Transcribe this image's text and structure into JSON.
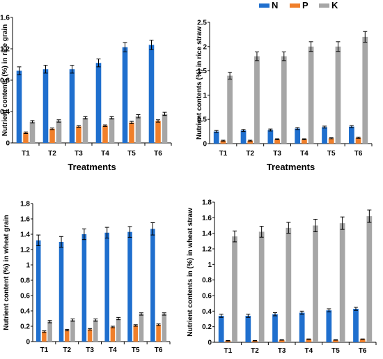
{
  "legend": [
    {
      "name": "N",
      "color": "#1f6fce"
    },
    {
      "name": "P",
      "color": "#f07f2a"
    },
    {
      "name": "K",
      "color": "#a6a6a6"
    }
  ],
  "chart_data": [
    {
      "type": "bar",
      "categories": [
        "T1",
        "T2",
        "T3",
        "T4",
        "T5",
        "T6"
      ],
      "ylabel": "Nutrient contents (%) in rice grain",
      "xlabel": "Treatments",
      "ylim": [
        0,
        1.6
      ],
      "yticks": [
        "0",
        "0.4",
        "0.8",
        "1.2",
        "1.6"
      ],
      "error_bars": true,
      "series": [
        {
          "name": "N",
          "values": [
            0.92,
            0.94,
            0.94,
            1.02,
            1.22,
            1.25
          ],
          "errors": [
            0.05,
            0.05,
            0.05,
            0.05,
            0.06,
            0.06
          ]
        },
        {
          "name": "P",
          "values": [
            0.13,
            0.18,
            0.21,
            0.22,
            0.26,
            0.28
          ],
          "errors": [
            0.01,
            0.01,
            0.01,
            0.01,
            0.015,
            0.015
          ]
        },
        {
          "name": "K",
          "values": [
            0.27,
            0.28,
            0.32,
            0.32,
            0.34,
            0.37
          ],
          "errors": [
            0.015,
            0.015,
            0.015,
            0.015,
            0.02,
            0.02
          ]
        }
      ]
    },
    {
      "type": "bar",
      "categories": [
        "T1",
        "T2",
        "T3",
        "T4",
        "T5",
        "T6"
      ],
      "ylabel": "Nutrient contents (%) in rice straw",
      "xlabel": "Treatments",
      "ylim": [
        0,
        2.5
      ],
      "yticks": [
        "0",
        "0.5",
        "1",
        "1.5",
        "2",
        "2.5"
      ],
      "error_bars": true,
      "series": [
        {
          "name": "N",
          "values": [
            0.25,
            0.27,
            0.28,
            0.31,
            0.34,
            0.35
          ],
          "errors": [
            0.02,
            0.02,
            0.02,
            0.02,
            0.02,
            0.02
          ]
        },
        {
          "name": "P",
          "values": [
            0.06,
            0.06,
            0.09,
            0.09,
            0.11,
            0.12
          ],
          "errors": [
            0.01,
            0.01,
            0.01,
            0.01,
            0.01,
            0.01
          ]
        },
        {
          "name": "K",
          "values": [
            1.4,
            1.8,
            1.8,
            2.0,
            2.0,
            2.2
          ],
          "errors": [
            0.07,
            0.09,
            0.09,
            0.1,
            0.1,
            0.11
          ]
        }
      ]
    },
    {
      "type": "bar",
      "categories": [
        "T1",
        "T2",
        "T3",
        "T4",
        "T5",
        "T6"
      ],
      "ylabel": "Nutrient content (%) in wheat grain",
      "xlabel": "",
      "ylim": [
        0,
        1.8
      ],
      "yticks": [
        "0",
        "0.2",
        "0.4",
        "0.6",
        "0.8",
        "1",
        "1.2",
        "1.4",
        "1.6",
        "1.8"
      ],
      "error_bars": true,
      "series": [
        {
          "name": "N",
          "values": [
            1.32,
            1.3,
            1.4,
            1.42,
            1.43,
            1.47
          ],
          "errors": [
            0.07,
            0.07,
            0.07,
            0.07,
            0.07,
            0.08
          ]
        },
        {
          "name": "P",
          "values": [
            0.13,
            0.15,
            0.16,
            0.19,
            0.21,
            0.22
          ],
          "errors": [
            0.01,
            0.01,
            0.01,
            0.01,
            0.01,
            0.01
          ]
        },
        {
          "name": "K",
          "values": [
            0.26,
            0.28,
            0.28,
            0.3,
            0.36,
            0.36
          ],
          "errors": [
            0.015,
            0.015,
            0.015,
            0.015,
            0.015,
            0.015
          ]
        }
      ]
    },
    {
      "type": "bar",
      "categories": [
        "T1",
        "T2",
        "T3",
        "T4",
        "T5",
        "T6"
      ],
      "ylabel": "Nutrient contents in (%) in wheat straw",
      "xlabel": "",
      "ylim": [
        0,
        1.8
      ],
      "yticks": [
        "0",
        "0.2",
        "0.4",
        "0.6",
        "0.8",
        "1",
        "1.2",
        "1.4",
        "1.6",
        "1.8"
      ],
      "error_bars": true,
      "series": [
        {
          "name": "N",
          "values": [
            0.34,
            0.34,
            0.36,
            0.38,
            0.41,
            0.43
          ],
          "errors": [
            0.02,
            0.02,
            0.02,
            0.02,
            0.02,
            0.02
          ]
        },
        {
          "name": "P",
          "values": [
            0.02,
            0.02,
            0.03,
            0.04,
            0.03,
            0.04
          ],
          "errors": [
            0.003,
            0.003,
            0.003,
            0.003,
            0.003,
            0.003
          ]
        },
        {
          "name": "K",
          "values": [
            1.36,
            1.42,
            1.47,
            1.5,
            1.53,
            1.62
          ],
          "errors": [
            0.07,
            0.07,
            0.07,
            0.08,
            0.08,
            0.08
          ]
        }
      ]
    }
  ]
}
